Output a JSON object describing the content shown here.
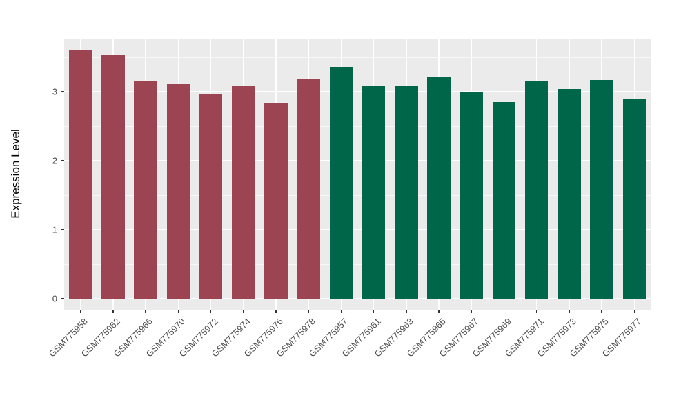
{
  "chart_data": {
    "type": "bar",
    "title": "",
    "xlabel": "",
    "ylabel": "Expression Level",
    "yticks": [
      0,
      1,
      2,
      3
    ],
    "yminorticks": [
      0.5,
      1.5,
      2.5,
      3.5
    ],
    "ylim": [
      -0.17,
      3.77
    ],
    "grid": "on",
    "legend_position": "none",
    "panel_background": "#EBEBEB",
    "gridline_color": "#FFFFFF",
    "tick_label_color": "#4D4D4D",
    "axis_title_color": "#000000",
    "tick_mark_color": "#333333",
    "group_colors": {
      "left_group": "#9C4452",
      "right_group": "#00664A"
    },
    "categories": [
      "GSM775958",
      "GSM775962",
      "GSM775966",
      "GSM775970",
      "GSM775972",
      "GSM775974",
      "GSM775976",
      "GSM775978",
      "GSM775957",
      "GSM775961",
      "GSM775963",
      "GSM775965",
      "GSM775967",
      "GSM775969",
      "GSM775971",
      "GSM775973",
      "GSM775975",
      "GSM775977"
    ],
    "values": [
      3.6,
      3.53,
      3.15,
      3.11,
      2.97,
      3.08,
      2.84,
      3.19,
      3.36,
      3.08,
      3.08,
      3.22,
      2.99,
      2.85,
      3.16,
      3.04,
      3.17,
      2.89
    ],
    "bar_colors": [
      "#9C4452",
      "#9C4452",
      "#9C4452",
      "#9C4452",
      "#9C4452",
      "#9C4452",
      "#9C4452",
      "#9C4452",
      "#00664A",
      "#00664A",
      "#00664A",
      "#00664A",
      "#00664A",
      "#00664A",
      "#00664A",
      "#00664A",
      "#00664A",
      "#00664A"
    ]
  }
}
